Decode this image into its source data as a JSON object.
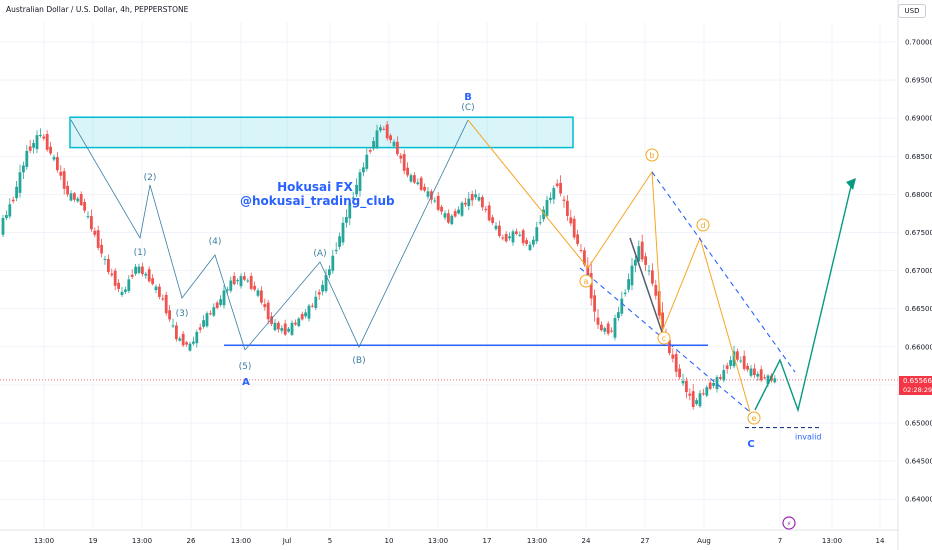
{
  "header": {
    "title": "Australian Dollar / U.S. Dollar, 4h, PEPPERSTONE",
    "currency_button": "USD"
  },
  "last_price": {
    "value": "0.65566",
    "countdown": "02:28:29"
  },
  "watermark": {
    "line1": "Hokusai FX",
    "line2": "@hokusai_trading_club"
  },
  "colors": {
    "bull": "#26a69a",
    "bear": "#ef5350",
    "wave_blue": "#2962ff",
    "wave_teal": "#3b7ea1",
    "orange": "#f5a623",
    "zone": "#00bcd4",
    "projection": "#089981",
    "price_tag": "#f23645"
  },
  "chart_data": {
    "type": "candlestick",
    "symbol": "AUDUSD",
    "timeframe": "4h",
    "y_axis": {
      "min": 0.635,
      "max": 0.705,
      "ticks": [
        "0.70000",
        "0.69500",
        "0.69000",
        "0.68500",
        "0.68000",
        "0.67500",
        "0.67000",
        "0.66500",
        "0.66000",
        "0.65500",
        "0.65000",
        "0.64500",
        "0.64000"
      ]
    },
    "x_axis": {
      "ticks": [
        "13:00",
        "19",
        "13:00",
        "26",
        "13:00",
        "Jul",
        "5",
        "10",
        "13:00",
        "17",
        "13:00",
        "24",
        "27",
        "Aug",
        "7",
        "13:00",
        "14"
      ]
    },
    "price_path": [
      [
        0.6755,
        0.6795,
        0.674
      ],
      [
        0.6795,
        0.6855,
        0.6785
      ],
      [
        0.6855,
        0.689,
        0.683
      ],
      [
        0.688,
        0.689,
        0.6845
      ],
      [
        0.6845,
        0.686,
        0.68
      ],
      [
        0.68,
        0.681,
        0.6785
      ],
      [
        0.679,
        0.68,
        0.674
      ],
      [
        0.6745,
        0.6755,
        0.67
      ],
      [
        0.67,
        0.671,
        0.6665
      ],
      [
        0.6668,
        0.671,
        0.666
      ],
      [
        0.6705,
        0.672,
        0.6685
      ],
      [
        0.669,
        0.6695,
        0.666
      ],
      [
        0.666,
        0.6665,
        0.6605
      ],
      [
        0.6612,
        0.662,
        0.6595
      ],
      [
        0.66,
        0.664,
        0.6595
      ],
      [
        0.6635,
        0.666,
        0.6625
      ],
      [
        0.6655,
        0.6695,
        0.6648
      ],
      [
        0.6685,
        0.6705,
        0.667
      ],
      [
        0.669,
        0.67,
        0.666
      ],
      [
        0.667,
        0.6675,
        0.6625
      ],
      [
        0.663,
        0.664,
        0.6605
      ],
      [
        0.662,
        0.664,
        0.661
      ],
      [
        0.6635,
        0.666,
        0.663
      ],
      [
        0.6655,
        0.67,
        0.6645
      ],
      [
        0.669,
        0.675,
        0.668
      ],
      [
        0.6745,
        0.681,
        0.674
      ],
      [
        0.68,
        0.6855,
        0.6795
      ],
      [
        0.685,
        0.6895,
        0.6845
      ],
      [
        0.689,
        0.6892,
        0.686
      ],
      [
        0.6865,
        0.687,
        0.682
      ],
      [
        0.6825,
        0.6835,
        0.68
      ],
      [
        0.681,
        0.683,
        0.679
      ],
      [
        0.679,
        0.6795,
        0.676
      ],
      [
        0.6765,
        0.679,
        0.676
      ],
      [
        0.6785,
        0.684,
        0.678
      ],
      [
        0.68,
        0.6805,
        0.677
      ],
      [
        0.677,
        0.678,
        0.6735
      ],
      [
        0.674,
        0.676,
        0.6725
      ],
      [
        0.675,
        0.676,
        0.673
      ],
      [
        0.673,
        0.679,
        0.6725
      ],
      [
        0.678,
        0.682,
        0.677
      ],
      [
        0.6815,
        0.683,
        0.676
      ],
      [
        0.676,
        0.677,
        0.6715
      ],
      [
        0.671,
        0.672,
        0.6615
      ],
      [
        0.6625,
        0.664,
        0.661
      ],
      [
        0.662,
        0.668,
        0.6615
      ],
      [
        0.6675,
        0.674,
        0.667
      ],
      [
        0.673,
        0.6745,
        0.668
      ],
      [
        0.6685,
        0.6695,
        0.66
      ],
      [
        0.6605,
        0.661,
        0.6555
      ],
      [
        0.656,
        0.658,
        0.6515
      ],
      [
        0.6525,
        0.655,
        0.651
      ],
      [
        0.6545,
        0.657,
        0.6535
      ],
      [
        0.656,
        0.66,
        0.655
      ],
      [
        0.659,
        0.661,
        0.656
      ],
      [
        0.657,
        0.6595,
        0.655
      ],
      [
        0.656,
        0.658,
        0.6552
      ]
    ],
    "zones": [
      {
        "name": "resistance-zone",
        "top": 0.69,
        "bottom": 0.6868
      }
    ],
    "levels": [
      {
        "name": "support-line",
        "price": 0.6602
      }
    ],
    "invalid_level": {
      "price": 0.6494,
      "label": "invalid"
    },
    "wave_labels": {
      "blue": [
        "(1)",
        "(2)",
        "(3)",
        "(4)",
        "(5)",
        "A",
        "(A)",
        "(B)",
        "(C)",
        "B",
        "C"
      ],
      "orange": [
        "a",
        "b",
        "c",
        "d",
        "e"
      ]
    },
    "grid": true,
    "icon": "lightning-icon"
  }
}
